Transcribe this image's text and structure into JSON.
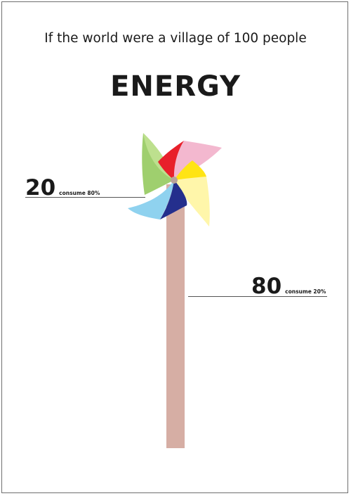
{
  "poster": {
    "subtitle": "If the world were a village of 100 people",
    "title": "ENERGY"
  },
  "stats": [
    {
      "number": "20",
      "label": "consume 80%"
    },
    {
      "number": "80",
      "label": "consume 20%"
    }
  ],
  "colors": {
    "pole": "#d6aea4",
    "blade_green": "#9fcf6e",
    "blade_pink": "#f3b8cf",
    "blade_red": "#e8202b",
    "blade_yellow": "#ffe414",
    "blade_cream": "#fff6aa",
    "blade_navy": "#242f8d",
    "blade_blue": "#8fd2ef",
    "hub": "#b9a39a",
    "rule": "#555555"
  }
}
